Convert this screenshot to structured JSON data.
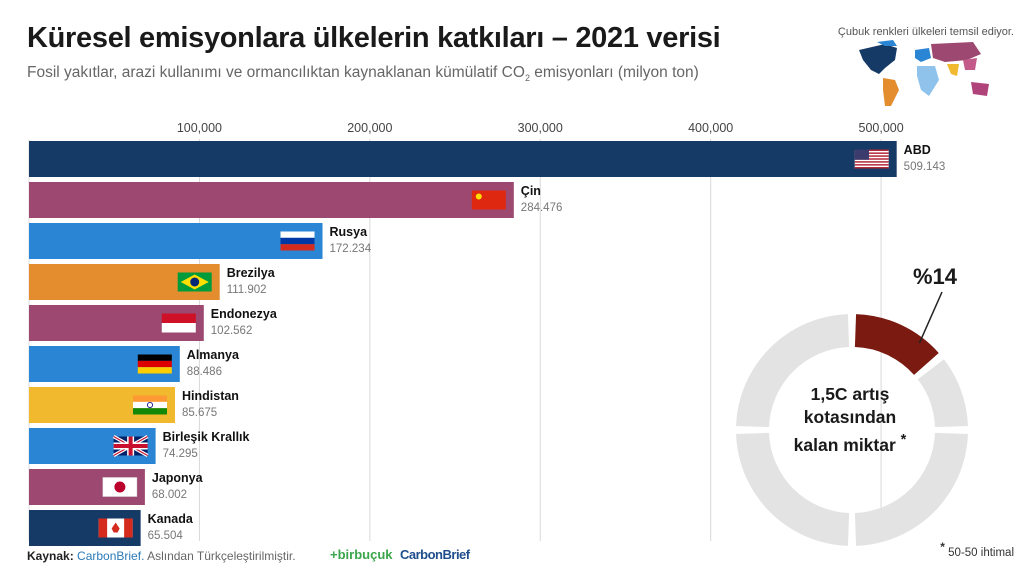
{
  "title": "Küresel emisyonlara ülkelerin katkıları – 2021 verisi",
  "subtitle_pre": "Fosil yakıtlar, arazi kullanımı ve ormancılıktan kaynaklanan kümülatif CO",
  "subtitle_sub": "2",
  "subtitle_post": " emisyonları (milyon ton)",
  "map_note": "Çubuk renkleri ülkeleri temsil ediyor.",
  "donut": {
    "percent_label": "%14",
    "percent_value": 14,
    "center_text": "1,5C artış kotasından kalan miktar",
    "asterisk": "*",
    "arc_color": "#7a1a10",
    "ring_color": "#e3e3e3"
  },
  "footer": {
    "source_label": "Kaynak:",
    "source_brand": "CarbonBrief.",
    "source_note": "Aslından Türkçeleştirilmiştir.",
    "logo1": "+birbuçuk",
    "logo2": "CarbonBrief"
  },
  "footnote": {
    "mark": "*",
    "text": "50-50 ihtimal"
  },
  "chart_data": {
    "type": "bar",
    "orientation": "horizontal",
    "xlim": [
      0,
      530000
    ],
    "x_ticks": [
      100000,
      200000,
      300000,
      400000,
      500000
    ],
    "x_tick_labels": [
      "100,000",
      "200,000",
      "300,000",
      "400,000",
      "500,000"
    ],
    "grid": true,
    "categories": [
      "ABD",
      "Çin",
      "Rusya",
      "Brezilya",
      "Endonezya",
      "Almanya",
      "Hindistan",
      "Birleşik Krallık",
      "Japonya",
      "Kanada"
    ],
    "values": [
      509143,
      284476,
      172234,
      111902,
      102562,
      88486,
      85675,
      74295,
      68002,
      65504
    ],
    "value_labels": [
      "509.143",
      "284.476",
      "172.234",
      "111.902",
      "102.562",
      "88.486",
      "85.675",
      "74.295",
      "68.002",
      "65.504"
    ],
    "colors": [
      "#163a66",
      "#9c4870",
      "#2a86d4",
      "#e38d2e",
      "#9c4870",
      "#2a86d4",
      "#f0b92e",
      "#2a86d4",
      "#9c4870",
      "#163a66"
    ],
    "flags": [
      "us-flag-icon",
      "cn-flag-icon",
      "ru-flag-icon",
      "br-flag-icon",
      "id-flag-icon",
      "de-flag-icon",
      "in-flag-icon",
      "uk-flag-icon",
      "jp-flag-icon",
      "ca-flag-icon"
    ]
  }
}
